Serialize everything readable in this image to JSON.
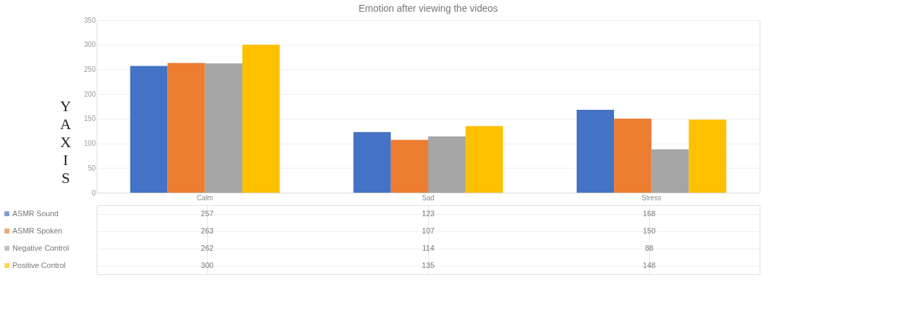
{
  "chart_data": {
    "type": "bar",
    "title": "Emotion after viewing the videos",
    "ylabel": "Y AXIS",
    "categories": [
      "Calm",
      "Sad",
      "Stress"
    ],
    "series": [
      {
        "name": "ASMR Sound",
        "color": "#4472c4",
        "values": [
          257,
          123,
          168
        ]
      },
      {
        "name": "ASMR Spoken",
        "color": "#ed7d31",
        "values": [
          263,
          107,
          150
        ]
      },
      {
        "name": "Negative Control",
        "color": "#a5a5a5",
        "values": [
          262,
          114,
          88
        ]
      },
      {
        "name": "Positive Control",
        "color": "#ffc000",
        "values": [
          300,
          135,
          148
        ]
      }
    ],
    "ylim": [
      0,
      350
    ],
    "yticks": [
      0,
      50,
      100,
      150,
      200,
      250,
      300,
      350
    ],
    "grid": "y",
    "legend": "bottom",
    "data_labels": true
  }
}
